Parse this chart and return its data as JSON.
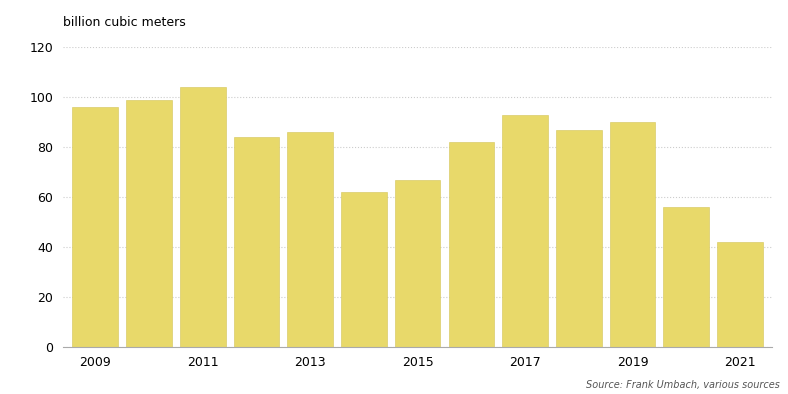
{
  "years": [
    2009,
    2010,
    2011,
    2012,
    2013,
    2014,
    2015,
    2016,
    2017,
    2018,
    2019,
    2020,
    2021
  ],
  "values": [
    96,
    99,
    104,
    84,
    86,
    62,
    67,
    82,
    93,
    87,
    90,
    56,
    42
  ],
  "bar_color": "#e8d96a",
  "bar_edgecolor": "#d4c558",
  "ylabel": "billion cubic meters",
  "ylim": [
    0,
    120
  ],
  "yticks": [
    0,
    20,
    40,
    60,
    80,
    100,
    120
  ],
  "xtick_positions": [
    0,
    2,
    4,
    6,
    8,
    10,
    12
  ],
  "xtick_labels": [
    "2009",
    "2011",
    "2013",
    "2015",
    "2017",
    "2019",
    "2021"
  ],
  "source_text": "Source: Frank Umbach, various sources",
  "background_color": "#ffffff",
  "grid_color": "#cccccc"
}
